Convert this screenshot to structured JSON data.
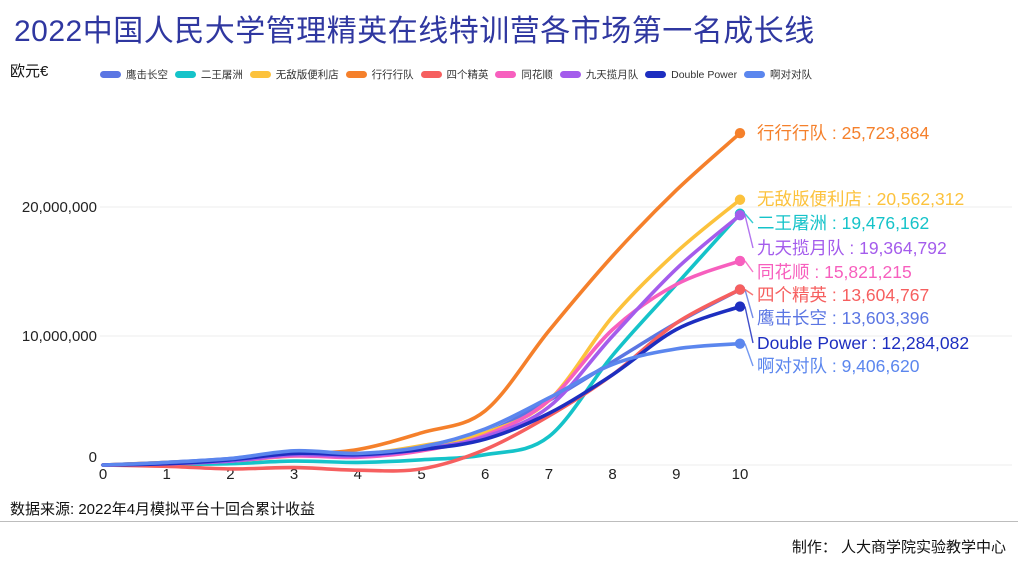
{
  "title": "2022中国人民大学管理精英在线特训营各市场第一名成长线",
  "unit_label": "欧元€",
  "source_note": "数据来源: 2022年4月模拟平台十回合累计收益",
  "credit": "制作： 人大商学院实验教学中心",
  "chart_data": {
    "type": "line",
    "title": "2022中国人民大学管理精英在线特训营各市场第一名成长线",
    "ylabel": "欧元€",
    "x": [
      0,
      1,
      2,
      3,
      4,
      5,
      6,
      7,
      8,
      9,
      10
    ],
    "x_tick_labels": [
      "0",
      "1",
      "2",
      "3",
      "4",
      "5",
      "6",
      "7",
      "8",
      "9",
      "10"
    ],
    "y_ticks": [
      {
        "value": 0,
        "label": "0"
      },
      {
        "value": 10000000,
        "label": "10,000,000"
      },
      {
        "value": 20000000,
        "label": "20,000,000"
      }
    ],
    "ylim": [
      -600000,
      26500000
    ],
    "grid": "horizontal",
    "legend_position": "top",
    "smooth": true,
    "series": [
      {
        "name": "鹰击长空",
        "color": "#5b76e3",
        "values": [
          0,
          200000,
          500000,
          1000000,
          800000,
          1300000,
          2500000,
          5000000,
          8000000,
          11000000,
          13603396
        ],
        "final_value": 13603396,
        "end_label": "鹰击长空 : 13,603,396",
        "end_label_row": 318
      },
      {
        "name": "二王屠洲",
        "color": "#15c3c9",
        "values": [
          0,
          50000,
          100000,
          300000,
          200000,
          400000,
          800000,
          2200000,
          8500000,
          14000000,
          19476162
        ],
        "final_value": 19476162,
        "end_label": "二王屠洲 : 19,476,162",
        "end_label_row": 223
      },
      {
        "name": "无敌版便利店",
        "color": "#fcc23c",
        "values": [
          0,
          100000,
          300000,
          700000,
          800000,
          1500000,
          2500000,
          5000000,
          11500000,
          16500000,
          20562312
        ],
        "final_value": 20562312,
        "end_label": "无敌版便利店 : 20,562,312",
        "end_label_row": 199
      },
      {
        "name": "行行行队",
        "color": "#f5802b",
        "values": [
          0,
          200000,
          400000,
          800000,
          1200000,
          2500000,
          4200000,
          10400000,
          16200000,
          21300000,
          25723884
        ],
        "final_value": 25723884,
        "end_label": "行行行队 : 25,723,884",
        "end_label_row": 133
      },
      {
        "name": "四个精英",
        "color": "#f65f5f",
        "values": [
          0,
          -100000,
          -300000,
          -200000,
          -400000,
          -300000,
          1200000,
          3800000,
          7000000,
          11000000,
          13604767
        ],
        "final_value": 13604767,
        "end_label": "四个精英 : 13,604,767",
        "end_label_row": 295
      },
      {
        "name": "同花顺",
        "color": "#f75fbe",
        "values": [
          0,
          100000,
          300000,
          700000,
          600000,
          1100000,
          2300000,
          5000000,
          10500000,
          14000000,
          15821215
        ],
        "final_value": 15821215,
        "end_label": "同花顺 : 15,821,215",
        "end_label_row": 272
      },
      {
        "name": "九天揽月队",
        "color": "#a45cec",
        "values": [
          0,
          100000,
          300000,
          800000,
          700000,
          1200000,
          2200000,
          4500000,
          10000000,
          15200000,
          19364792
        ],
        "final_value": 19364792,
        "end_label": "九天揽月队 : 19,364,792",
        "end_label_row": 248
      },
      {
        "name": "Double Power",
        "color": "#1d2ec0",
        "values": [
          0,
          100000,
          400000,
          900000,
          800000,
          1200000,
          2000000,
          4000000,
          7000000,
          10500000,
          12284082
        ],
        "final_value": 12284082,
        "end_label": "Double Power : 12,284,082",
        "end_label_row": 343
      },
      {
        "name": "啊对对队",
        "color": "#5b86ee",
        "values": [
          0,
          200000,
          500000,
          1100000,
          900000,
          1400000,
          2800000,
          5200000,
          7800000,
          9000000,
          9406620
        ],
        "final_value": 9406620,
        "end_label": "啊对对队 : 9,406,620",
        "end_label_row": 366
      }
    ]
  }
}
